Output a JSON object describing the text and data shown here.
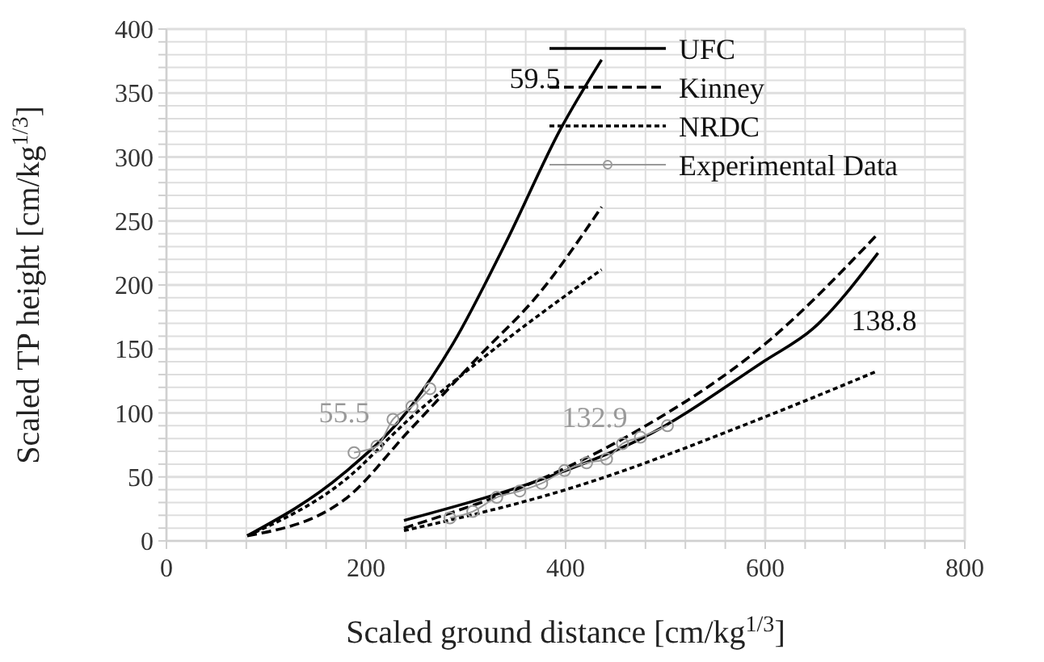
{
  "chart_data": {
    "type": "line",
    "xlabel": "Scaled ground distance [cm/kg$^{1/3}$]",
    "ylabel": "Scaled TP height [cm/kg$^{1/3}$]",
    "xlim": [
      0,
      800
    ],
    "ylim": [
      0,
      400
    ],
    "xticks": [
      0,
      {
        "value": 40,
        "label": null
      },
      {
        "value": 80,
        "label": null
      },
      {
        "value": 120,
        "label": null
      },
      {
        "value": 160,
        "label": null
      },
      200,
      {
        "value": 240,
        "label": null
      },
      {
        "value": 280,
        "label": null
      },
      {
        "value": 320,
        "label": null
      },
      {
        "value": 360,
        "label": null
      },
      400,
      {
        "value": 440,
        "label": null
      },
      {
        "value": 480,
        "label": null
      },
      {
        "value": 520,
        "label": null
      },
      {
        "value": 560,
        "label": null
      },
      600,
      {
        "value": 640,
        "label": null
      },
      {
        "value": 680,
        "label": null
      },
      {
        "value": 720,
        "label": null
      },
      {
        "value": 760,
        "label": null
      },
      800
    ],
    "yticks": [
      0,
      {
        "value": 10,
        "label": null
      },
      {
        "value": 20,
        "label": null
      },
      {
        "value": 30,
        "label": null
      },
      {
        "value": 40,
        "label": null
      },
      50,
      {
        "value": 60,
        "label": null
      },
      {
        "value": 70,
        "label": null
      },
      {
        "value": 80,
        "label": null
      },
      {
        "value": 90,
        "label": null
      },
      100,
      {
        "value": 110,
        "label": null
      },
      {
        "value": 120,
        "label": null
      },
      {
        "value": 130,
        "label": null
      },
      {
        "value": 140,
        "label": null
      },
      150,
      {
        "value": 160,
        "label": null
      },
      {
        "value": 170,
        "label": null
      },
      {
        "value": 180,
        "label": null
      },
      {
        "value": 190,
        "label": null
      },
      200,
      {
        "value": 210,
        "label": null
      },
      {
        "value": 220,
        "label": null
      },
      {
        "value": 230,
        "label": null
      },
      {
        "value": 240,
        "label": null
      },
      250,
      {
        "value": 260,
        "label": null
      },
      {
        "value": 270,
        "label": null
      },
      {
        "value": 280,
        "label": null
      },
      {
        "value": 290,
        "label": null
      },
      300,
      {
        "value": 310,
        "label": null
      },
      {
        "value": 320,
        "label": null
      },
      {
        "value": 330,
        "label": null
      },
      {
        "value": 340,
        "label": null
      },
      350,
      {
        "value": 360,
        "label": null
      },
      {
        "value": 370,
        "label": null
      },
      {
        "value": 380,
        "label": null
      },
      {
        "value": 390,
        "label": null
      },
      400
    ],
    "grid": true,
    "legend": "top right",
    "series": [
      {
        "name": "UFC",
        "color": "#000000",
        "line_style": "solid",
        "marker": "none",
        "x": [
          81,
          178,
          243,
          287,
          340,
          395,
          436
        ],
        "values": [
          4,
          53,
          103,
          154,
          233,
          322,
          376
        ]
      },
      {
        "name": "Kinney",
        "color": "#000000",
        "line_style": "dashed",
        "marker": "none",
        "x": [
          81,
          178,
          243,
          314,
          372,
          436
        ],
        "values": [
          4,
          32,
          86,
          145,
          192,
          261
        ]
      },
      {
        "name": "NRDC",
        "color": "#000000",
        "line_style": "dotted",
        "marker": "none",
        "x": [
          81,
          178,
          243,
          314,
          436
        ],
        "values": [
          4,
          47,
          95,
          141,
          212
        ]
      },
      {
        "name": "Experimental Data",
        "color": "#999999",
        "line_style": "solid",
        "marker": "circle",
        "x": [
          188,
          211,
          227,
          246,
          264
        ],
        "values": [
          69,
          74,
          95,
          105,
          119
        ]
      },
      {
        "color": "#000000",
        "line_style": "solid",
        "marker": "none",
        "x": [
          238,
          400,
          476,
          600,
          648,
          713
        ],
        "values": [
          16,
          55,
          80,
          141,
          166,
          225
        ]
      },
      {
        "color": "#000000",
        "line_style": "dashed",
        "marker": "none",
        "x": [
          238,
          400,
          476,
          600,
          713
        ],
        "values": [
          10,
          57,
          88,
          154,
          240
        ]
      },
      {
        "color": "#000000",
        "line_style": "dotted",
        "marker": "none",
        "x": [
          238,
          400,
          600,
          710
        ],
        "values": [
          8,
          40,
          97,
          132
        ]
      },
      {
        "color": "#999999",
        "line_style": "solid",
        "marker": "circle",
        "x": [
          284,
          307,
          331,
          354,
          376,
          399,
          421,
          441,
          457,
          475,
          502
        ],
        "values": [
          18,
          23,
          34,
          39,
          45,
          55,
          61,
          64,
          76,
          81,
          90
        ]
      }
    ],
    "annotations": [
      "59.5",
      "55.5",
      "132.9",
      "138.8"
    ]
  }
}
